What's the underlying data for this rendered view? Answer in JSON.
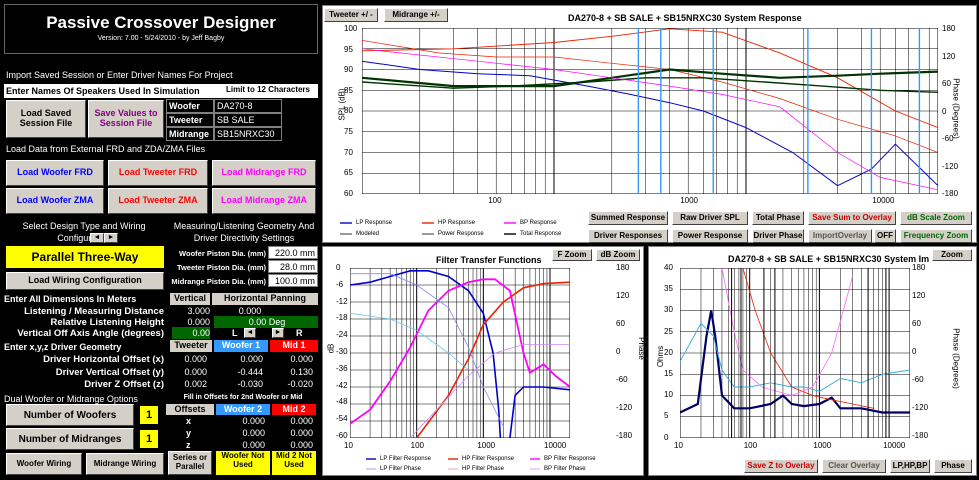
{
  "app": {
    "title": "Passive Crossover Designer",
    "version": "Version: 7.00  -  5/24/2010  -  by Jeff Bagby"
  },
  "left": {
    "import_header": "Import Saved Session or Enter Driver Names For Project",
    "names_header": "Enter Names Of Speakers Used In Simulation",
    "limit_label": "Limit to 12 Characters",
    "load_saved": "Load Saved Session File",
    "save_values": "Save Values to Session File",
    "driver_rows": [
      {
        "label": "Woofer",
        "value": "DA270-8"
      },
      {
        "label": "Tweeter",
        "value": "SB SALE"
      },
      {
        "label": "Midrange",
        "value": "SB15NRXC30"
      }
    ],
    "load_data_header": "Load Data from External FRD and ZDA/ZMA Files",
    "load_buttons": [
      {
        "label": "Load Woofer FRD",
        "color": "#0000ff"
      },
      {
        "label": "Load Tweeter FRD",
        "color": "#ff0000"
      },
      {
        "label": "Load Midrange FRD",
        "color": "#ff00ff"
      },
      {
        "label": "Load Woofer ZMA",
        "color": "#0000ff"
      },
      {
        "label": "Load Tweeter ZMA",
        "color": "#ff0000"
      },
      {
        "label": "Load Midrange ZMA",
        "color": "#ff00ff"
      }
    ],
    "design_type_header": "Select Design Type and Wiring Configuration",
    "design_type_value": "Parallel Three-Way",
    "load_wiring": "Load Wiring Configuration",
    "geometry_header": "Measuring/Listening Geometry And Driver Directivity Settings",
    "pistons": [
      {
        "label": "Woofer Piston Dia. (mm)",
        "value": "220.0 mm"
      },
      {
        "label": "Tweeter Piston Dia. (mm)",
        "value": "28.0 mm"
      },
      {
        "label": "Midrange Piston Dia. (mm)",
        "value": "100.0 mm"
      }
    ],
    "dims_header": "Enter All Dimensions In Meters",
    "vertical_label": "Vertical",
    "horizontal_label": "Horizontal Panning",
    "listen_rows": [
      {
        "label": "Listening / Measuring  Distance",
        "v": "3.000",
        "h": "0.000"
      },
      {
        "label": "Relative Listening Height",
        "v": "0.000",
        "h": "0.00 Deg"
      },
      {
        "label": "Vertical Off Axis Angle (degrees)",
        "v": "0.00",
        "h": ""
      }
    ],
    "lr": {
      "l": "L",
      "r": "R"
    },
    "xyz_header": "Enter x,y,z Driver Geometry",
    "col_tweeter": "Tweeter",
    "col_woofer1": "Woofer 1",
    "col_mid1": "Mid 1",
    "offset_rows": [
      {
        "label": "Driver Horizontal Offset (x)",
        "t": "0.000",
        "w": "0.000",
        "m": "0.000"
      },
      {
        "label": "Driver Vertical Offset (y)",
        "t": "0.000",
        "w": "-0.444",
        "m": "0.130"
      },
      {
        "label": "Driver Z Offset (z)",
        "t": "0.002",
        "w": "-0.030",
        "m": "-0.020"
      }
    ],
    "dual_header": "Dual Woofer or Midrange Options",
    "fill_offsets": "Fill in Offsets for 2nd Woofer or Mid",
    "num_woofers_label": "Number of Woofers",
    "num_woofers": "1",
    "num_mids_label": "Number of Midranges",
    "num_mids": "1",
    "offsets_label": "Offsets",
    "col_woofer2": "Woofer 2",
    "col_mid2": "Mid 2",
    "dual_rows": [
      {
        "axis": "x",
        "w": "0.000",
        "m": "0.000"
      },
      {
        "axis": "y",
        "w": "0.000",
        "m": "0.000"
      },
      {
        "axis": "z",
        "w": "0.000",
        "m": "0.000"
      }
    ],
    "woofer_wiring": "Woofer Wiring",
    "midrange_wiring": "Midrange Wiring",
    "series_parallel": "Series or Parallel",
    "not_used_1": "Woofer Not Used",
    "not_used_2": "Mid 2 Not Used"
  },
  "main_chart": {
    "tabs": [
      "Tweeter +/ -",
      "Midrange  +/-"
    ],
    "title": "DA270-8  + SB SALE + SB15NRXC30  System Response",
    "ylabel": "SPL (dB)",
    "ylabel_right": "Phase (Degrees)",
    "y_ticks": [
      "100",
      "95",
      "90",
      "85",
      "80",
      "75",
      "70",
      "65",
      "60"
    ],
    "y_right_ticks": [
      "180",
      "120",
      "60",
      "0",
      "-60",
      "-120",
      "-180"
    ],
    "x_ticks": [
      "100",
      "1000",
      "10000"
    ],
    "legend": [
      "LP Response",
      "HP Response",
      "BP Response",
      "Modeled",
      "Power Response",
      "Total Response"
    ],
    "buttons": [
      "Summed Response",
      "Raw Driver SPL",
      "Total Phase",
      "Save Sum to Overlay",
      "dB Scale Zoom",
      "Driver Responses",
      "Power Response",
      "Driver Phase",
      "ImportOverlay",
      "OFF",
      "Frequency Zoom"
    ]
  },
  "filter_chart": {
    "title": "Filter Transfer Functions",
    "zoom_f": "F Zoom",
    "zoom_db": "dB Zoom",
    "ylabel": "dB",
    "ylabel_right": "Phase",
    "y_ticks": [
      "0",
      "-6",
      "-12",
      "-18",
      "-24",
      "-30",
      "-36",
      "-42",
      "-48",
      "-54",
      "-60"
    ],
    "y_right_ticks": [
      "180",
      "120",
      "60",
      "0",
      "-60",
      "-120",
      "-180"
    ],
    "x_ticks": [
      "10",
      "100",
      "1000",
      "10000"
    ],
    "legend": [
      "LP Filter Response",
      "HP Filter Response",
      "BP Filter Response",
      "LP Filter Phase",
      "HP Filter Phase",
      "BP Filter Phase"
    ]
  },
  "imp_chart": {
    "title": "DA270-8  + SB SALE + SB15NRXC30   System Im",
    "zoom": "Zoom",
    "ylabel": "Ohms",
    "ylabel_right": "Phase (Degrees)",
    "y_ticks": [
      "40",
      "35",
      "30",
      "25",
      "20",
      "15",
      "10",
      "5",
      "0"
    ],
    "y_right_ticks": [
      "180",
      "120",
      "60",
      "0",
      "-60",
      "-120",
      "-180"
    ],
    "x_ticks": [
      "10",
      "100",
      "1000",
      "10000"
    ],
    "buttons": [
      "Save Z to Overlay",
      "Clear Overlay",
      "LP,HP,BP",
      "Phase"
    ]
  },
  "colors": {
    "blue": "#0000cc",
    "red": "#ee2200",
    "magenta": "#ff00ff",
    "darkgreen": "#003300",
    "navy": "#000066",
    "accent_yellow": "#ffff00"
  }
}
